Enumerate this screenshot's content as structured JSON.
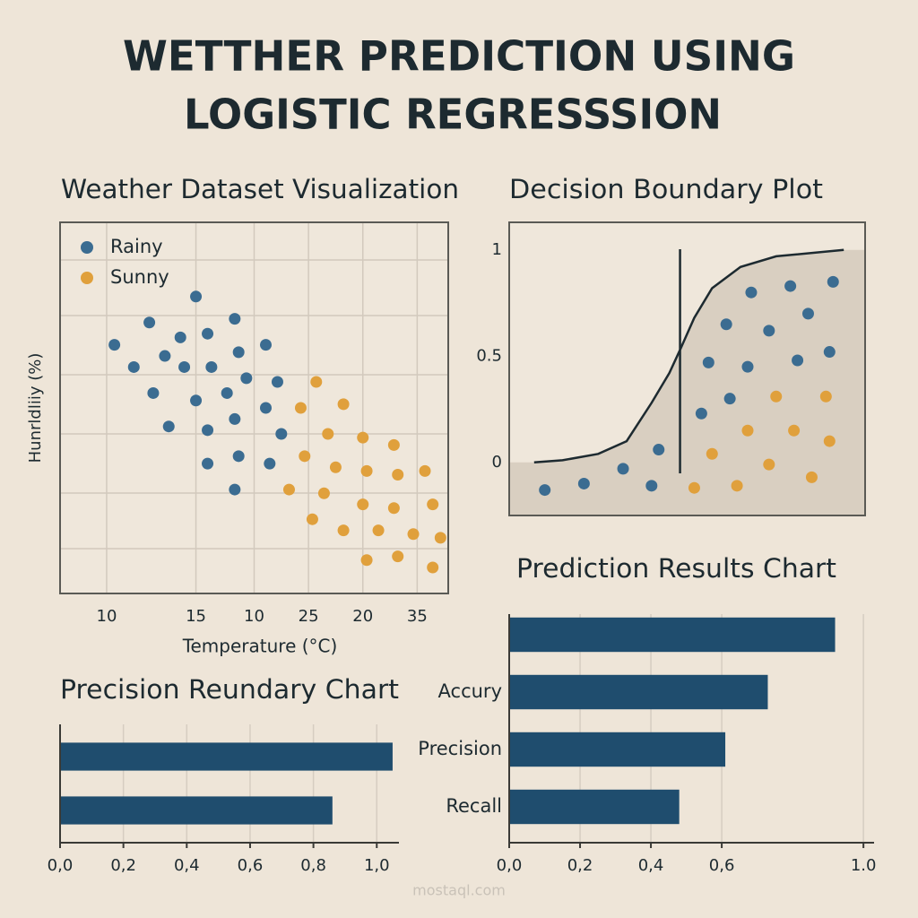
{
  "title_lines": [
    "WETTHER PREDICTION USING",
    "LOGISTIC REGRESSSION"
  ],
  "watermark": "mostaql.com",
  "chart_data": [
    {
      "type": "scatter",
      "title": "Weather Dataset Visualization",
      "xlabel": "Temperature (°C)",
      "ylabel": "Hunrldliiy (%)",
      "xlim": [
        0,
        100
      ],
      "ylim": [
        0,
        100
      ],
      "xticks": [
        {
          "value": 12,
          "label": "10"
        },
        {
          "value": 35,
          "label": "15"
        },
        {
          "value": 50,
          "label": "10"
        },
        {
          "value": 64,
          "label": "25"
        },
        {
          "value": 78,
          "label": "20"
        },
        {
          "value": 92,
          "label": "35"
        }
      ],
      "grid": true,
      "legend": "upper left",
      "series": [
        {
          "name": "Rainy",
          "color": "#3b6c91",
          "x": [
            14,
            19,
            23,
            24,
            27,
            28,
            31,
            32,
            35,
            35,
            38,
            38,
            39,
            38,
            43,
            45,
            46,
            45,
            46,
            48,
            45,
            53,
            53,
            54,
            56,
            57
          ],
          "values": [
            67,
            61,
            73,
            54,
            64,
            45,
            69,
            61,
            80,
            52,
            44,
            70,
            61,
            35,
            54,
            74,
            65,
            47,
            37,
            58,
            28,
            67,
            50,
            35,
            57,
            43
          ]
        },
        {
          "name": "Sunny",
          "color": "#e0a03c",
          "x": [
            66,
            62,
            73,
            69,
            63,
            78,
            71,
            59,
            68,
            79,
            86,
            87,
            94,
            65,
            73,
            78,
            86,
            96,
            82,
            91,
            98,
            79,
            87,
            96
          ],
          "values": [
            57,
            50,
            51,
            43,
            37,
            42,
            34,
            28,
            27,
            33,
            40,
            32,
            33,
            20,
            17,
            24,
            23,
            24,
            17,
            16,
            15,
            9,
            10,
            7
          ]
        }
      ]
    },
    {
      "type": "logistic",
      "title": "Decision Boundary Plot",
      "xlim": [
        0,
        100
      ],
      "ylim": [
        -0.25,
        1.13
      ],
      "yticks": [
        0,
        0.5,
        1
      ],
      "boundary_x": 48,
      "shade": "#d9cfc1",
      "curve": {
        "color": "#1d2a30",
        "x": [
          7,
          15,
          25,
          33,
          40,
          45,
          48,
          52,
          57,
          65,
          75,
          94
        ],
        "values": [
          0,
          0.01,
          0.04,
          0.1,
          0.28,
          0.42,
          0.53,
          0.68,
          0.82,
          0.92,
          0.97,
          1.0
        ]
      },
      "series": [
        {
          "color": "#3b6c91",
          "x": [
            10,
            21,
            32,
            40,
            42,
            54,
            56,
            62,
            61,
            67,
            68,
            73,
            79,
            81,
            84,
            90,
            91
          ],
          "values": [
            -0.13,
            -0.1,
            -0.03,
            -0.11,
            0.06,
            0.23,
            0.47,
            0.3,
            0.65,
            0.45,
            0.8,
            0.62,
            0.83,
            0.48,
            0.7,
            0.52,
            0.85
          ]
        },
        {
          "color": "#e0a03c",
          "x": [
            52,
            57,
            64,
            67,
            73,
            75,
            80,
            85,
            89,
            90
          ],
          "values": [
            -0.12,
            0.04,
            -0.11,
            0.15,
            -0.01,
            0.31,
            0.15,
            -0.07,
            0.31,
            0.1
          ]
        }
      ]
    },
    {
      "type": "barh",
      "title": "Precision Reundary Chart",
      "xlim": [
        0,
        1.07
      ],
      "xticks": [
        {
          "value": 0,
          "label": "0,0"
        },
        {
          "value": 0.2,
          "label": "0,2"
        },
        {
          "value": 0.4,
          "label": "0,4"
        },
        {
          "value": 0.6,
          "label": "0,6"
        },
        {
          "value": 0.8,
          "label": "0,8"
        },
        {
          "value": 1,
          "label": "1,0"
        }
      ],
      "grid": true,
      "categories": [
        null,
        null
      ],
      "values": [
        1.05,
        0.86
      ],
      "color": "#1f4d6e"
    },
    {
      "type": "barh",
      "title": "Prediction Results Chart",
      "xlim": [
        0,
        1.03
      ],
      "xticks": [
        {
          "value": 0,
          "label": "0,0"
        },
        {
          "value": 0.2,
          "label": "0,2"
        },
        {
          "value": 0.4,
          "label": "0,4"
        },
        {
          "value": 0.6,
          "label": "0,6"
        },
        {
          "value": 1,
          "label": "1.0"
        }
      ],
      "grid": true,
      "categories": [
        null,
        "Accury",
        "Precision",
        "Recall"
      ],
      "values": [
        0.92,
        0.73,
        0.61,
        0.48
      ],
      "color": "#1f4d6e"
    }
  ]
}
